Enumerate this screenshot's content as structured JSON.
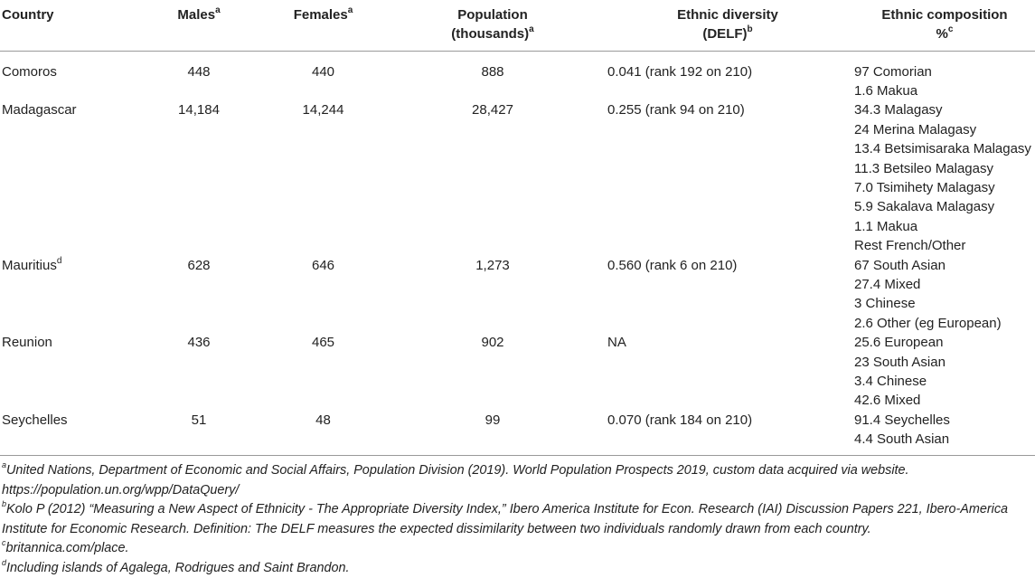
{
  "headers": {
    "country": "Country",
    "males": "Males",
    "males_sup": "a",
    "females": "Females",
    "females_sup": "a",
    "population_line1": "Population",
    "population_line2": "(thousands)",
    "population_sup": "a",
    "ethnic_diversity_line1": "Ethnic diversity",
    "ethnic_diversity_line2": "(DELF)",
    "ethnic_diversity_sup": "b",
    "ethnic_composition_line1": "Ethnic composition",
    "ethnic_composition_line2": "%",
    "ethnic_composition_sup": "c"
  },
  "rows": [
    {
      "country": "Comoros",
      "country_sup": "",
      "males": "448",
      "females": "440",
      "population": "888",
      "diversity": "0.041 (rank 192 on 210)",
      "composition": [
        "97 Comorian",
        "1.6 Makua"
      ]
    },
    {
      "country": "Madagascar",
      "country_sup": "",
      "males": "14,184",
      "females": "14,244",
      "population": "28,427",
      "diversity": "0.255 (rank 94 on 210)",
      "composition": [
        "34.3 Malagasy",
        "24 Merina Malagasy",
        "13.4 Betsimisaraka Malagasy",
        "11.3 Betsileo Malagasy",
        "7.0 Tsimihety Malagasy",
        "5.9 Sakalava Malagasy",
        "1.1 Makua",
        "Rest French/Other"
      ]
    },
    {
      "country": "Mauritius",
      "country_sup": "d",
      "males": "628",
      "females": "646",
      "population": "1,273",
      "diversity": "0.560 (rank 6 on 210)",
      "composition": [
        "67 South Asian",
        "27.4 Mixed",
        "3 Chinese",
        "2.6 Other (eg European)"
      ]
    },
    {
      "country": "Reunion",
      "country_sup": "",
      "males": "436",
      "females": "465",
      "population": "902",
      "diversity": "NA",
      "composition": [
        "25.6 European",
        "23 South Asian",
        "3.4 Chinese",
        "42.6 Mixed"
      ]
    },
    {
      "country": "Seychelles",
      "country_sup": "",
      "males": "51",
      "females": "48",
      "population": "99",
      "diversity": "0.070 (rank 184 on 210)",
      "composition": [
        "91.4 Seychelles",
        "4.4 South Asian"
      ]
    }
  ],
  "notes": [
    {
      "sup": "a",
      "text": "United Nations, Department of Economic and Social Affairs, Population Division (2019). World Population Prospects 2019, custom data acquired via website. https://population.un.org/wpp/DataQuery/"
    },
    {
      "sup": "b",
      "text": "Kolo P (2012) “Measuring a New Aspect of Ethnicity - The Appropriate Diversity Index,” Ibero America Institute for Econ. Research (IAI) Discussion Papers 221, Ibero-America Institute for Economic Research. Definition: The DELF measures the expected dissimilarity between two individuals randomly drawn from each country."
    },
    {
      "sup": "c",
      "text": "britannica.com/place."
    },
    {
      "sup": "d",
      "text": "Including islands of Agalega, Rodrigues and Saint Brandon."
    }
  ]
}
